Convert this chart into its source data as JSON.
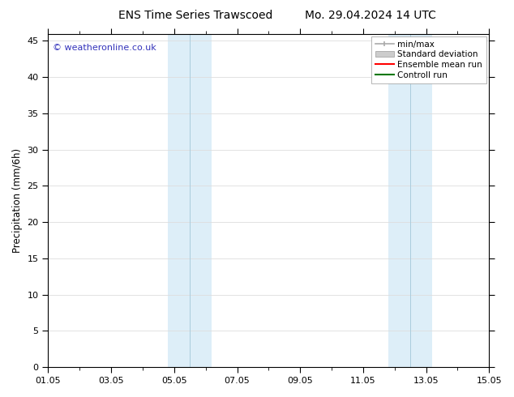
{
  "title_left": "ENS Time Series Trawscoed",
  "title_right": "Mo. 29.04.2024 14 UTC",
  "ylabel": "Precipitation (mm/6h)",
  "watermark": "© weatheronline.co.uk",
  "watermark_color": "#3333bb",
  "x_start": 0.0,
  "x_end": 14.0,
  "x_tick_positions": [
    0,
    2,
    4,
    6,
    8,
    10,
    12,
    14
  ],
  "x_tick_labels": [
    "01.05",
    "03.05",
    "05.05",
    "07.05",
    "09.05",
    "11.05",
    "13.05",
    "15.05"
  ],
  "ylim_min": 0,
  "ylim_max": 46,
  "y_ticks": [
    0,
    5,
    10,
    15,
    20,
    25,
    30,
    35,
    40,
    45
  ],
  "shaded_regions": [
    {
      "x_start": 3.8,
      "x_end": 4.5,
      "color": "#ddeef8"
    },
    {
      "x_start": 4.5,
      "x_end": 5.2,
      "color": "#ddeef8"
    },
    {
      "x_start": 10.8,
      "x_end": 11.5,
      "color": "#ddeef8"
    },
    {
      "x_start": 11.5,
      "x_end": 12.2,
      "color": "#ddeef8"
    }
  ],
  "shaded_dividers": [
    4.5,
    11.5
  ],
  "legend_items": [
    {
      "label": "min/max",
      "color": "#aaaaaa",
      "style": "line_with_caps"
    },
    {
      "label": "Standard deviation",
      "color": "#cccccc",
      "style": "rect"
    },
    {
      "label": "Ensemble mean run",
      "color": "#ff0000",
      "style": "line"
    },
    {
      "label": "Controll run",
      "color": "#007700",
      "style": "line"
    }
  ],
  "background_color": "#ffffff",
  "grid_color": "#dddddd",
  "title_fontsize": 10,
  "axis_fontsize": 8.5,
  "tick_fontsize": 8,
  "legend_fontsize": 7.5
}
